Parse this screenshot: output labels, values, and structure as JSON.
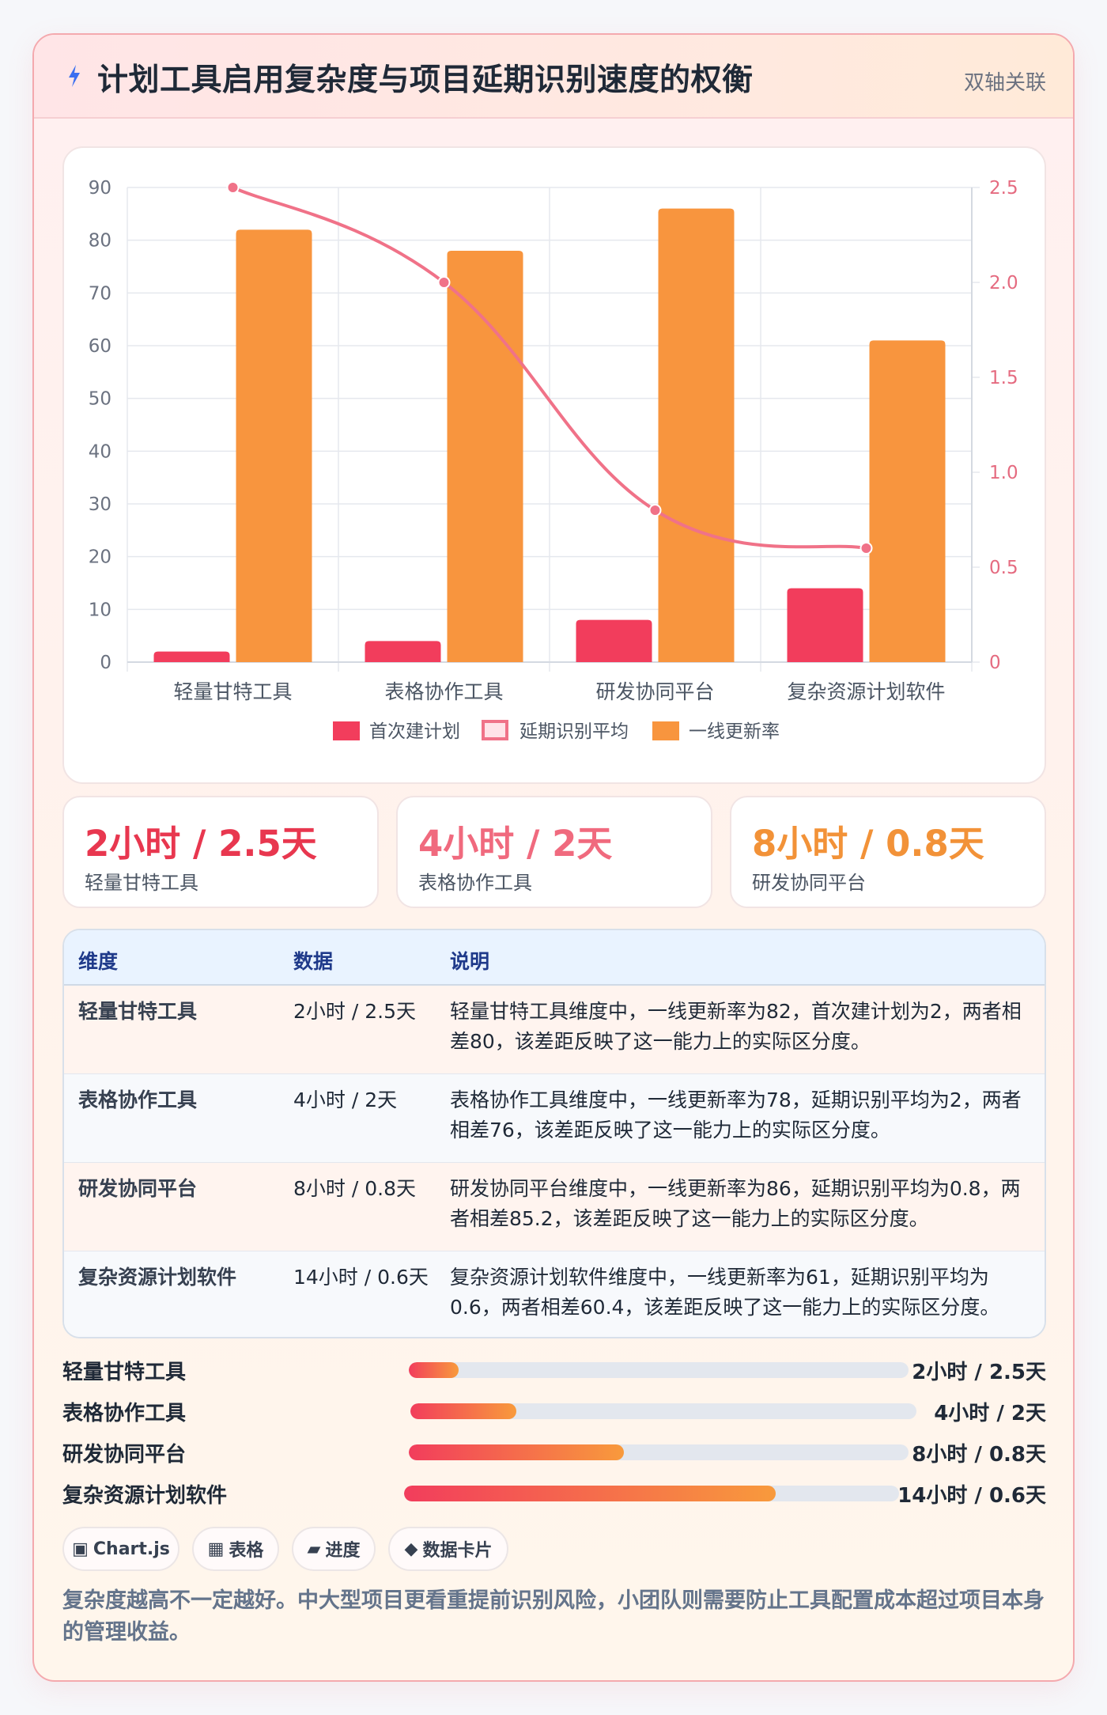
{
  "header": {
    "icon": "lightning-icon",
    "title": "计划工具启用复杂度与项目延期识别速度的权衡",
    "tag": "双轴关联"
  },
  "chart_data": {
    "type": "bar",
    "categories": [
      "轻量甘特工具",
      "表格协作工具",
      "研发协同平台",
      "复杂资源计划软件"
    ],
    "series": [
      {
        "name": "首次建计划",
        "kind": "bar",
        "axis": "left",
        "color": "#f23d5c",
        "values": [
          2,
          4,
          8,
          14
        ]
      },
      {
        "name": "延期识别平均",
        "kind": "line",
        "axis": "right",
        "color": "#f07288",
        "values": [
          2.5,
          2,
          0.8,
          0.6
        ]
      },
      {
        "name": "一线更新率",
        "kind": "bar",
        "axis": "left",
        "color": "#f8953e",
        "values": [
          82,
          78,
          86,
          61
        ]
      }
    ],
    "y_left": {
      "ylim": [
        0,
        90
      ],
      "ticks": [
        0,
        10,
        20,
        30,
        40,
        50,
        60,
        70,
        80,
        90
      ]
    },
    "y_right": {
      "ylim": [
        0,
        2.5
      ],
      "ticks": [
        "0",
        "0.5",
        "1.0",
        "1.5",
        "2.0",
        "2.5"
      ]
    },
    "grid": true,
    "legend_position": "bottom"
  },
  "stats": [
    {
      "value": "2小时 / 2.5天",
      "label": "轻量甘特工具",
      "color": "#e8374f"
    },
    {
      "value": "4小时 / 2天",
      "label": "表格协作工具",
      "color": "#f06a7e"
    },
    {
      "value": "8小时 / 0.8天",
      "label": "研发协同平台",
      "color": "#f29238"
    }
  ],
  "table": {
    "headers": [
      "维度",
      "数据",
      "说明"
    ],
    "rows": [
      {
        "dim": "轻量甘特工具",
        "data": "2小时 / 2.5天",
        "desc": "轻量甘特工具维度中，一线更新率为82，首次建计划为2，两者相差80，该差距反映了这一能力上的实际区分度。"
      },
      {
        "dim": "表格协作工具",
        "data": "4小时 / 2天",
        "desc": "表格协作工具维度中，一线更新率为78，延期识别平均为2，两者相差76，该差距反映了这一能力上的实际区分度。"
      },
      {
        "dim": "研发协同平台",
        "data": "8小时 / 0.8天",
        "desc": "研发协同平台维度中，一线更新率为86，延期识别平均为0.8，两者相差85.2，该差距反映了这一能力上的实际区分度。"
      },
      {
        "dim": "复杂资源计划软件",
        "data": "14小时 / 0.6天",
        "desc": "复杂资源计划软件维度中，一线更新率为61，延期识别平均为0.6，两者相差60.4，该差距反映了这一能力上的实际区分度。"
      }
    ]
  },
  "progress": [
    {
      "label": "轻量甘特工具",
      "value": "2小时 / 2.5天",
      "fraction": 0.1
    },
    {
      "label": "表格协作工具",
      "value": "4小时 / 2天",
      "fraction": 0.21
    },
    {
      "label": "研发协同平台",
      "value": "8小时 / 0.8天",
      "fraction": 0.43
    },
    {
      "label": "复杂资源计划软件",
      "value": "14小时 / 0.6天",
      "fraction": 0.75
    }
  ],
  "chips": [
    {
      "icon": "chart-icon",
      "glyph": "▣",
      "label": "Chart.js"
    },
    {
      "icon": "table-icon",
      "glyph": "▦",
      "label": "表格"
    },
    {
      "icon": "progress-icon",
      "glyph": "▰",
      "label": "进度"
    },
    {
      "icon": "diamond-icon",
      "glyph": "◆",
      "label": "数据卡片"
    }
  ],
  "footnote": "复杂度越高不一定越好。中大型项目更看重提前识别风险，小团队则需要防止工具配置成本超过项目本身的管理收益。"
}
